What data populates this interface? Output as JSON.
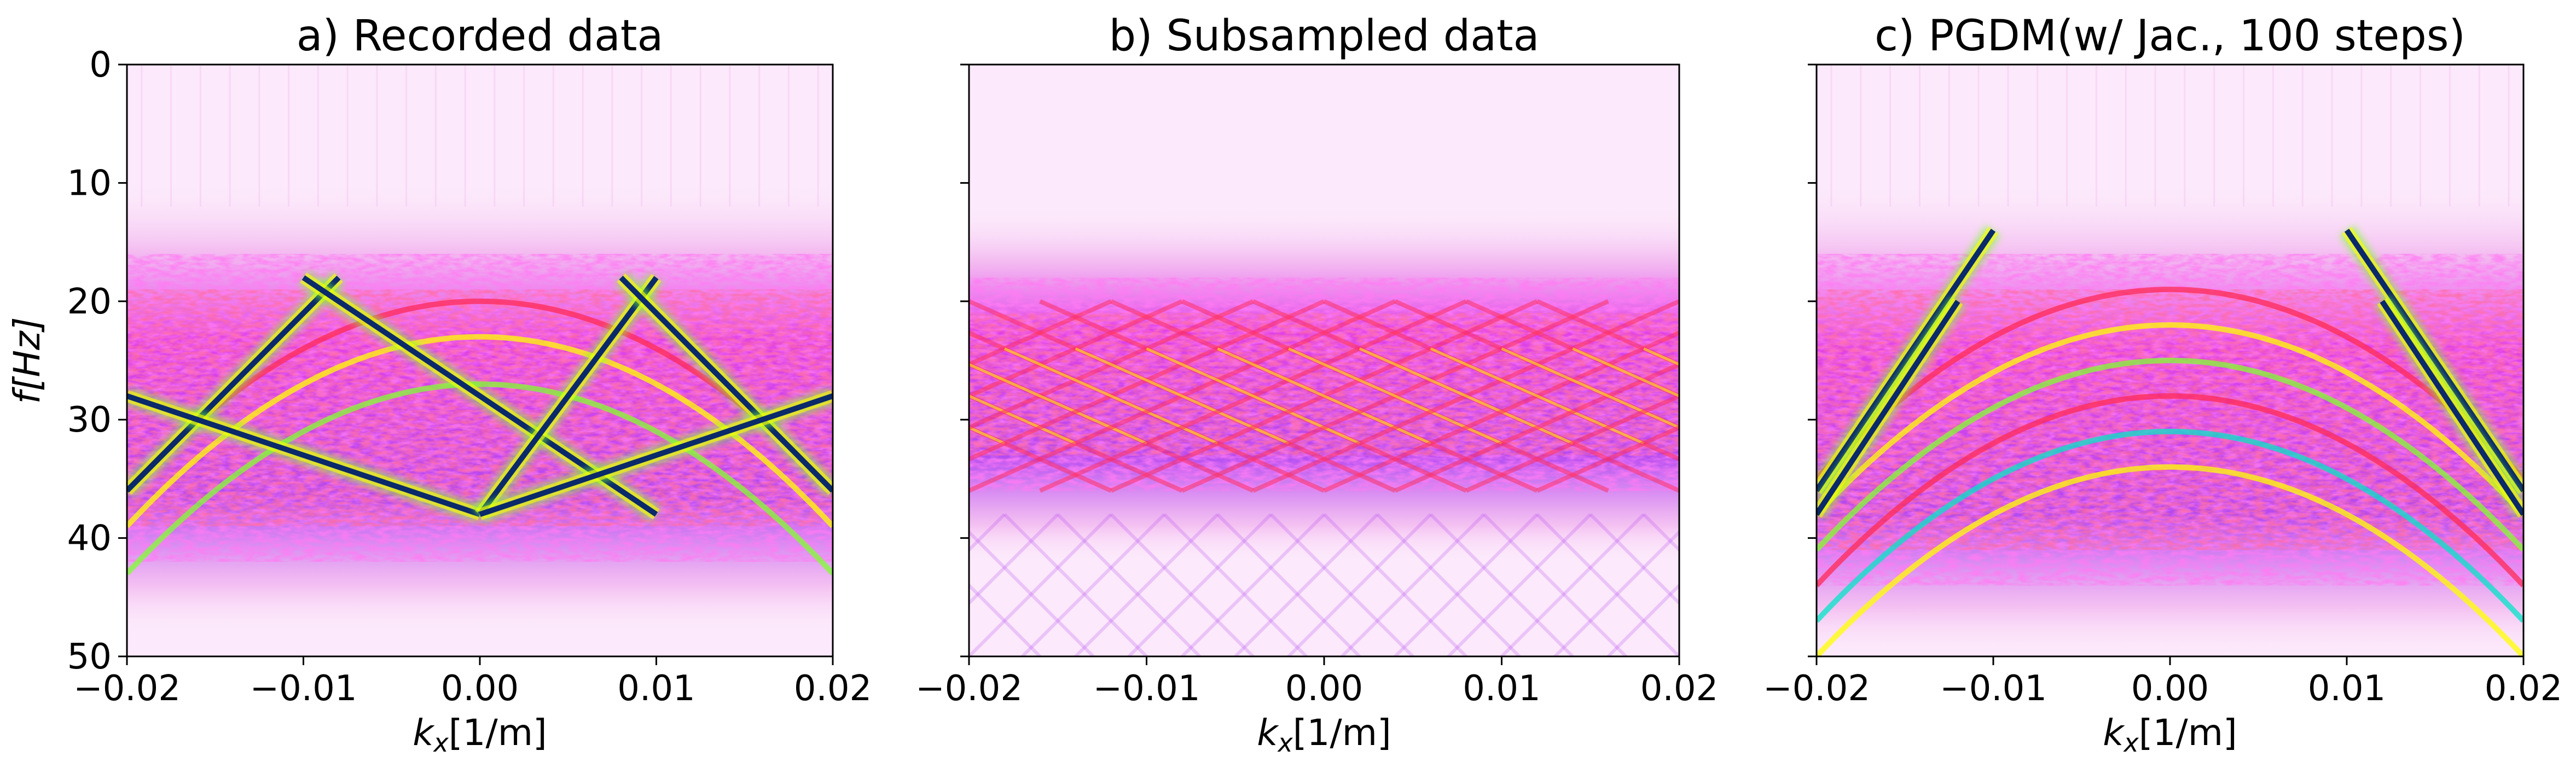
{
  "figure": {
    "colors": {
      "background": "#fce9fb",
      "light": "#f3b9f0",
      "magenta": "#e040e8",
      "violet": "#b040f0",
      "red": "#ff2a55",
      "yellow": "#ffff00",
      "green": "#7fff30",
      "cyan": "#00e5c8",
      "dark": "#0a2a6a"
    }
  },
  "chart_data": [
    {
      "type": "heatmap",
      "id": "a",
      "title": "a) Recorded data",
      "xlabel": "k",
      "xlabel_sub": "x",
      "xlabel_unit": "[1/m]",
      "ylabel": "f",
      "ylabel_unit": "[Hz]",
      "xlim": [
        -0.02,
        0.02
      ],
      "ylim": [
        50,
        0
      ],
      "xticks": [
        -0.02,
        -0.01,
        0.0,
        0.01,
        0.02
      ],
      "xtick_labels": [
        "−0.02",
        "−0.01",
        "0.00",
        "0.01",
        "0.02"
      ],
      "yticks": [
        0,
        10,
        20,
        30,
        40,
        50
      ],
      "ytick_labels": [
        "0",
        "10",
        "20",
        "30",
        "40",
        "50"
      ],
      "energy_band_hz": [
        18,
        42
      ],
      "event_lines": [
        {
          "k": [
            -0.02,
            -0.008
          ],
          "f": [
            36,
            18
          ]
        },
        {
          "k": [
            -0.02,
            0.0
          ],
          "f": [
            28,
            38
          ]
        },
        {
          "k": [
            -0.01,
            0.01
          ],
          "f": [
            18,
            38
          ]
        },
        {
          "k": [
            0.0,
            0.01
          ],
          "f": [
            38,
            18
          ]
        },
        {
          "k": [
            0.008,
            0.02
          ],
          "f": [
            18,
            36
          ]
        },
        {
          "k": [
            0.0,
            0.02
          ],
          "f": [
            38,
            28
          ]
        }
      ]
    },
    {
      "type": "heatmap",
      "id": "b",
      "title": "b) Subsampled data",
      "xlabel": "k",
      "xlabel_sub": "x",
      "xlabel_unit": "[1/m]",
      "xlim": [
        -0.02,
        0.02
      ],
      "ylim": [
        50,
        0
      ],
      "xticks": [
        -0.02,
        -0.01,
        0.0,
        0.01,
        0.02
      ],
      "xtick_labels": [
        "−0.02",
        "−0.01",
        "0.00",
        "0.01",
        "0.02"
      ],
      "yticks": [
        0,
        10,
        20,
        30,
        40,
        50
      ],
      "energy_band_hz": [
        20,
        36
      ]
    },
    {
      "type": "heatmap",
      "id": "c",
      "title": "c) PGDM(w/ Jac., 100 steps)",
      "xlabel": "k",
      "xlabel_sub": "x",
      "xlabel_unit": "[1/m]",
      "xlim": [
        -0.02,
        0.02
      ],
      "ylim": [
        50,
        0
      ],
      "xticks": [
        -0.02,
        -0.01,
        0.0,
        0.01,
        0.02
      ],
      "xtick_labels": [
        "−0.02",
        "−0.01",
        "0.00",
        "0.01",
        "0.02"
      ],
      "yticks": [
        0,
        10,
        20,
        30,
        40,
        50
      ],
      "energy_band_hz": [
        18,
        44
      ],
      "event_lines": [
        {
          "k": [
            -0.02,
            -0.01
          ],
          "f": [
            36,
            14
          ]
        },
        {
          "k": [
            -0.02,
            -0.012
          ],
          "f": [
            38,
            20
          ]
        },
        {
          "k": [
            0.01,
            0.02
          ],
          "f": [
            14,
            36
          ]
        },
        {
          "k": [
            0.012,
            0.02
          ],
          "f": [
            20,
            38
          ]
        }
      ]
    }
  ]
}
